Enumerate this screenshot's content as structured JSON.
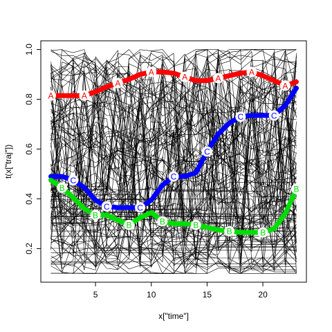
{
  "chart_data": {
    "type": "line",
    "xlabel": "x[\"time\"]",
    "ylabel": "t(x[\"traj\"])",
    "xlim": [
      0.1,
      23.9
    ],
    "ylim": [
      0.065,
      1.035
    ],
    "x_ticks": [
      "5",
      "10",
      "15",
      "20"
    ],
    "y_ticks": [
      "0.2",
      "0.4",
      "0.6",
      "0.8",
      "1.0"
    ],
    "background_trajectories_count": 120,
    "series": [
      {
        "name": "A",
        "color": "#ff0000",
        "x": [
          1,
          2,
          3,
          4,
          5,
          6,
          7,
          8,
          9,
          10,
          11,
          12,
          13,
          14,
          15,
          16,
          17,
          18,
          19,
          20,
          21,
          22,
          23
        ],
        "values": [
          0.815,
          0.815,
          0.815,
          0.815,
          0.83,
          0.85,
          0.865,
          0.88,
          0.9,
          0.91,
          0.91,
          0.905,
          0.89,
          0.875,
          0.875,
          0.885,
          0.895,
          0.905,
          0.91,
          0.895,
          0.875,
          0.855,
          0.87
        ],
        "labels_at": [
          1,
          4,
          7,
          10,
          13,
          16,
          19,
          22
        ]
      },
      {
        "name": "C",
        "color": "#0000ff",
        "x": [
          1,
          2,
          3,
          4,
          5,
          6,
          7,
          8,
          9,
          10,
          11,
          12,
          13,
          14,
          15,
          16,
          17,
          18,
          19,
          20,
          21,
          22,
          23
        ],
        "values": [
          0.49,
          0.49,
          0.475,
          0.445,
          0.395,
          0.37,
          0.365,
          0.365,
          0.365,
          0.395,
          0.455,
          0.49,
          0.49,
          0.505,
          0.59,
          0.66,
          0.705,
          0.73,
          0.735,
          0.735,
          0.735,
          0.775,
          0.845
        ],
        "labels_at": [
          3,
          6,
          9,
          12,
          15,
          18,
          21
        ]
      },
      {
        "name": "B",
        "color": "#00dd00",
        "x": [
          1,
          2,
          3,
          4,
          5,
          6,
          7,
          8,
          9,
          10,
          11,
          12,
          13,
          14,
          15,
          16,
          17,
          18,
          19,
          20,
          21,
          22,
          23
        ],
        "values": [
          0.475,
          0.445,
          0.405,
          0.36,
          0.335,
          0.335,
          0.315,
          0.295,
          0.325,
          0.345,
          0.31,
          0.3,
          0.3,
          0.295,
          0.285,
          0.275,
          0.27,
          0.265,
          0.265,
          0.265,
          0.28,
          0.34,
          0.44
        ],
        "labels_at": [
          2,
          5,
          8,
          11,
          14,
          17,
          20,
          23
        ]
      }
    ]
  }
}
